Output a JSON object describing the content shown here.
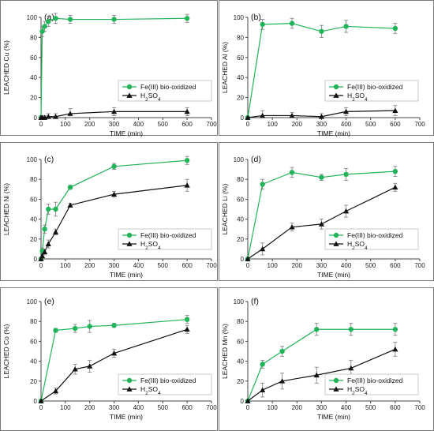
{
  "colors": {
    "green": "#22b45a",
    "black": "#111111",
    "frame": "#7a7a7a",
    "errorbar": "#7a7a7a"
  },
  "chart_data": [
    {
      "panel_label": "(a)",
      "type": "line",
      "xlabel": "TIME (min)",
      "ylabel": "LEACHED Cu (%)",
      "xlim": [
        0,
        700
      ],
      "ylim": [
        0,
        100
      ],
      "xticks": [
        0,
        100,
        200,
        300,
        400,
        500,
        600,
        700
      ],
      "yticks": [
        0,
        20,
        40,
        60,
        80,
        100
      ],
      "legend_position": "middle-right",
      "grid": false,
      "series": [
        {
          "name": "Fe(III) bio-oxidized",
          "color": "#22b45a",
          "marker": "circle",
          "x": [
            0,
            5,
            15,
            30,
            60,
            120,
            300,
            600
          ],
          "y": [
            0,
            86,
            91,
            96,
            99,
            98,
            98,
            99
          ],
          "err": [
            0,
            5,
            5,
            5,
            5,
            4,
            4,
            4
          ]
        },
        {
          "name": "H2SO4",
          "color": "#111111",
          "marker": "triangle",
          "x": [
            0,
            5,
            15,
            30,
            60,
            120,
            300,
            600
          ],
          "y": [
            0,
            0,
            0,
            1,
            1,
            4,
            6,
            6
          ],
          "err": [
            0,
            1,
            2,
            3,
            3,
            5,
            4,
            4
          ]
        }
      ]
    },
    {
      "panel_label": "(b)",
      "type": "line",
      "xlabel": "TIME (min)",
      "ylabel": "LEACHED Al (%)",
      "xlim": [
        0,
        700
      ],
      "ylim": [
        0,
        100
      ],
      "xticks": [
        0,
        100,
        200,
        300,
        400,
        500,
        600,
        700
      ],
      "yticks": [
        0,
        20,
        40,
        60,
        80,
        100
      ],
      "legend_position": "middle-right",
      "grid": false,
      "series": [
        {
          "name": "Fe(III) bio-oxidized",
          "color": "#22b45a",
          "marker": "circle",
          "x": [
            0,
            60,
            180,
            300,
            400,
            600
          ],
          "y": [
            0,
            93,
            94,
            86,
            91,
            89
          ],
          "err": [
            0,
            5,
            5,
            6,
            6,
            5
          ]
        },
        {
          "name": "H2SO4",
          "color": "#111111",
          "marker": "triangle",
          "x": [
            0,
            60,
            180,
            300,
            400,
            600
          ],
          "y": [
            0,
            2,
            2,
            1,
            6,
            7
          ],
          "err": [
            0,
            5,
            3,
            3,
            4,
            5
          ]
        }
      ]
    },
    {
      "panel_label": "(c)",
      "type": "line",
      "xlabel": "TIME (min)",
      "ylabel": "LEACHED Ni (%)",
      "xlim": [
        0,
        700
      ],
      "ylim": [
        0,
        100
      ],
      "xticks": [
        0,
        100,
        200,
        300,
        400,
        500,
        600,
        700
      ],
      "yticks": [
        0,
        20,
        40,
        60,
        80,
        100
      ],
      "legend_position": "lower-right",
      "grid": false,
      "series": [
        {
          "name": "Fe(III) bio-oxidized",
          "color": "#22b45a",
          "marker": "circle",
          "x": [
            0,
            5,
            15,
            30,
            60,
            120,
            300,
            600
          ],
          "y": [
            0,
            8,
            30,
            50,
            50,
            72,
            93,
            99
          ],
          "err": [
            0,
            3,
            4,
            5,
            7,
            2,
            3,
            4
          ]
        },
        {
          "name": "H2SO4",
          "color": "#111111",
          "marker": "triangle",
          "x": [
            0,
            5,
            15,
            30,
            60,
            120,
            300,
            600
          ],
          "y": [
            0,
            3,
            7,
            15,
            27,
            54,
            65,
            74
          ],
          "err": [
            0,
            2,
            3,
            4,
            3,
            2,
            3,
            6
          ]
        }
      ]
    },
    {
      "panel_label": "(d)",
      "type": "line",
      "xlabel": "TIME (min)",
      "ylabel": "LEACHED Li (%)",
      "xlim": [
        0,
        700
      ],
      "ylim": [
        0,
        100
      ],
      "xticks": [
        0,
        100,
        200,
        300,
        400,
        500,
        600,
        700
      ],
      "yticks": [
        0,
        20,
        40,
        60,
        80,
        100
      ],
      "legend_position": "lower-right",
      "grid": false,
      "series": [
        {
          "name": "Fe(III) bio-oxidized",
          "color": "#22b45a",
          "marker": "circle",
          "x": [
            0,
            60,
            180,
            300,
            400,
            600
          ],
          "y": [
            0,
            75,
            87,
            82,
            85,
            88
          ],
          "err": [
            0,
            5,
            5,
            3,
            6,
            5
          ]
        },
        {
          "name": "H2SO4",
          "color": "#111111",
          "marker": "triangle",
          "x": [
            0,
            60,
            180,
            300,
            400,
            600
          ],
          "y": [
            0,
            10,
            32,
            35,
            48,
            72
          ],
          "err": [
            0,
            6,
            4,
            5,
            6,
            4
          ]
        }
      ]
    },
    {
      "panel_label": "(e)",
      "type": "line",
      "xlabel": "TIME (min)",
      "ylabel": "LEACHED Co (%)",
      "xlim": [
        0,
        700
      ],
      "ylim": [
        0,
        100
      ],
      "xticks": [
        0,
        100,
        200,
        300,
        400,
        500,
        600,
        700
      ],
      "yticks": [
        0,
        20,
        40,
        60,
        80,
        100
      ],
      "legend_position": "lower-right",
      "grid": false,
      "series": [
        {
          "name": "Fe(III) bio-oxidized",
          "color": "#22b45a",
          "marker": "circle",
          "x": [
            0,
            60,
            140,
            200,
            300,
            600
          ],
          "y": [
            0,
            71,
            73,
            75,
            76,
            82
          ],
          "err": [
            0,
            2,
            4,
            6,
            2,
            4
          ]
        },
        {
          "name": "H2SO4",
          "color": "#111111",
          "marker": "triangle",
          "x": [
            0,
            60,
            140,
            200,
            300,
            600
          ],
          "y": [
            0,
            10,
            32,
            35,
            48,
            72
          ],
          "err": [
            0,
            3,
            5,
            6,
            4,
            4
          ]
        }
      ]
    },
    {
      "panel_label": "(f)",
      "type": "line",
      "xlabel": "TIME (min)",
      "ylabel": "LEACHED Mn (%)",
      "xlim": [
        0,
        700
      ],
      "ylim": [
        0,
        100
      ],
      "xticks": [
        0,
        100,
        200,
        300,
        400,
        500,
        600,
        700
      ],
      "yticks": [
        0,
        20,
        40,
        60,
        80,
        100
      ],
      "legend_position": "lower-right",
      "grid": false,
      "series": [
        {
          "name": "Fe(III) bio-oxidized",
          "color": "#22b45a",
          "marker": "circle",
          "x": [
            0,
            60,
            140,
            280,
            420,
            600
          ],
          "y": [
            0,
            37,
            50,
            72,
            72,
            72
          ],
          "err": [
            0,
            4,
            5,
            6,
            6,
            6
          ]
        },
        {
          "name": "H2SO4",
          "color": "#111111",
          "marker": "triangle",
          "x": [
            0,
            60,
            140,
            280,
            420,
            600
          ],
          "y": [
            0,
            11,
            20,
            26,
            33,
            52
          ],
          "err": [
            0,
            7,
            8,
            8,
            8,
            7
          ]
        }
      ]
    }
  ]
}
